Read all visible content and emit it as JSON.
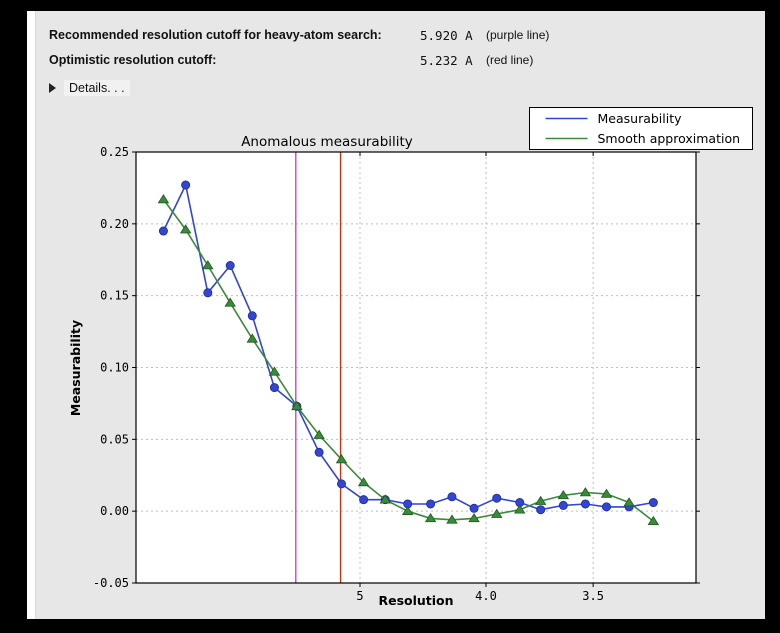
{
  "header": {
    "rows": [
      {
        "label": "Recommended resolution cutoff for heavy-atom search:",
        "value": "5.920 A",
        "note": "(purple line)"
      },
      {
        "label": "Optimistic resolution cutoff:",
        "value": "5.232 A",
        "note": "(red line)"
      }
    ],
    "details_label": "Details. . ."
  },
  "chart_data": {
    "type": "line",
    "title": "Anomalous measurability",
    "xlabel": "Resolution",
    "ylabel": "Measurability",
    "x_axis_scale": "inverse_d_squared",
    "x_s2_range": [
      0.0,
      0.1
    ],
    "ylim": [
      -0.05,
      0.25
    ],
    "grid": true,
    "legend_position": "top-right",
    "x_resolution_A": [
      14.29,
      10.62,
      8.83,
      7.71,
      6.94,
      6.36,
      5.9,
      5.53,
      5.22,
      4.96,
      4.74,
      4.54,
      4.36,
      4.21,
      4.07,
      3.94,
      3.82,
      3.72,
      3.62,
      3.53,
      3.45,
      3.37,
      3.29
    ],
    "series": [
      {
        "name": "Measurability",
        "color": "#3246d2",
        "marker": "circle",
        "values": [
          0.195,
          0.227,
          0.152,
          0.171,
          0.136,
          0.086,
          0.073,
          0.041,
          0.019,
          0.008,
          0.008,
          0.005,
          0.005,
          0.01,
          0.002,
          0.009,
          0.006,
          0.001,
          0.004,
          0.005,
          0.003,
          0.003,
          0.006
        ]
      },
      {
        "name": "Smooth approximation",
        "color": "#3b8a3b",
        "marker": "triangle",
        "values": [
          0.217,
          0.196,
          0.171,
          0.145,
          0.12,
          0.097,
          0.073,
          0.053,
          0.036,
          0.02,
          0.008,
          0.0,
          -0.005,
          -0.006,
          -0.005,
          -0.002,
          0.001,
          0.007,
          0.011,
          0.013,
          0.012,
          0.006,
          -0.007
        ]
      }
    ],
    "vlines": [
      {
        "name": "recommended-cutoff",
        "resolution_A": 5.92,
        "color": "#cc44cc"
      },
      {
        "name": "optimistic-cutoff",
        "resolution_A": 5.232,
        "color": "#c53511"
      }
    ],
    "yticks": [
      {
        "label": "0.25",
        "value": 0.25
      },
      {
        "label": "0.20",
        "value": 0.2
      },
      {
        "label": "0.15",
        "value": 0.15
      },
      {
        "label": "0.10",
        "value": 0.1
      },
      {
        "label": "0.05",
        "value": 0.05
      },
      {
        "label": "0.00",
        "value": 0.0
      },
      {
        "label": "-0.05",
        "value": -0.05
      }
    ],
    "xticks": [
      {
        "label": "5",
        "resolution_A": 5.0
      },
      {
        "label": "4.0",
        "resolution_A": 4.0
      },
      {
        "label": "3.5",
        "resolution_A": 3.5
      }
    ]
  },
  "colors": {
    "panel": "#e7e7e7",
    "plot_bg": "#ffffff",
    "gridline": "#bfbfbf",
    "frame": "#000000"
  }
}
